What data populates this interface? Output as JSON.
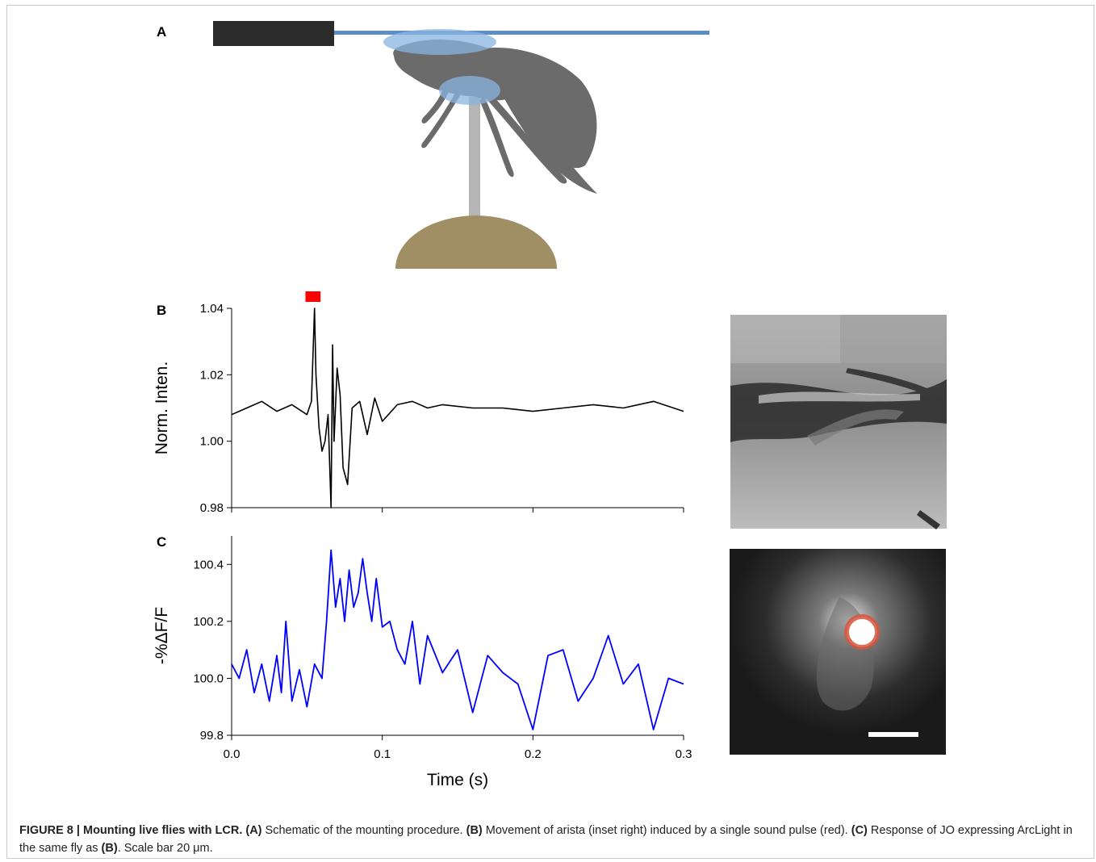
{
  "panels": {
    "a": "A",
    "b": "B",
    "c": "C"
  },
  "colors": {
    "mount_bar": "#2b2b2b",
    "beam": "#5b8ec4",
    "glue": "#8ab4e0",
    "fly": "#6b6b6b",
    "rod": "#b5b5b5",
    "base": "#a08e64",
    "pulse": "#ff0000",
    "trace_b": "#000000",
    "trace_c": "#0000ff",
    "roi_circle": "#d9533c"
  },
  "icons": {
    "fly": "fly-silhouette-icon"
  },
  "chart_data": [
    {
      "id": "B",
      "type": "line",
      "title": "",
      "xlabel": "",
      "ylabel": "Norm. Inten.",
      "xlim": [
        0.0,
        0.3
      ],
      "ylim": [
        0.98,
        1.04
      ],
      "yticks": [
        "0.98",
        "1.00",
        "1.02",
        "1.04"
      ],
      "grid": false,
      "stimulus": {
        "label": "",
        "x_start": 0.049,
        "x_end": 0.059,
        "color": "#ff0000"
      },
      "series": [
        {
          "x": [
            0.0,
            0.01,
            0.02,
            0.03,
            0.04,
            0.05,
            0.053,
            0.055,
            0.056,
            0.058,
            0.06,
            0.062,
            0.064,
            0.066,
            0.067,
            0.068,
            0.07,
            0.072,
            0.074,
            0.077,
            0.08,
            0.085,
            0.09,
            0.095,
            0.1,
            0.11,
            0.12,
            0.13,
            0.14,
            0.16,
            0.18,
            0.2,
            0.22,
            0.24,
            0.26,
            0.28,
            0.3
          ],
          "y": [
            1.008,
            1.01,
            1.012,
            1.009,
            1.011,
            1.008,
            1.012,
            1.04,
            1.02,
            1.004,
            0.997,
            1.0,
            1.008,
            0.98,
            1.029,
            1.0,
            1.022,
            1.014,
            0.992,
            0.987,
            1.01,
            1.012,
            1.002,
            1.013,
            1.006,
            1.011,
            1.012,
            1.01,
            1.011,
            1.01,
            1.01,
            1.009,
            1.01,
            1.011,
            1.01,
            1.012,
            1.009
          ]
        }
      ]
    },
    {
      "id": "C",
      "type": "line",
      "title": "",
      "xlabel": "Time (s)",
      "ylabel": "-%ΔF/F",
      "xlim": [
        0.0,
        0.3
      ],
      "ylim": [
        99.8,
        100.5
      ],
      "xticks": [
        "0.0",
        "0.1",
        "0.2",
        "0.3"
      ],
      "yticks": [
        "99.8",
        "100.0",
        "100.2",
        "100.4"
      ],
      "grid": false,
      "series": [
        {
          "x": [
            0.0,
            0.005,
            0.01,
            0.015,
            0.02,
            0.025,
            0.03,
            0.033,
            0.036,
            0.04,
            0.045,
            0.05,
            0.055,
            0.06,
            0.063,
            0.066,
            0.069,
            0.072,
            0.075,
            0.078,
            0.081,
            0.084,
            0.087,
            0.09,
            0.093,
            0.096,
            0.1,
            0.105,
            0.11,
            0.115,
            0.12,
            0.125,
            0.13,
            0.14,
            0.15,
            0.16,
            0.17,
            0.18,
            0.19,
            0.2,
            0.21,
            0.22,
            0.23,
            0.24,
            0.25,
            0.26,
            0.27,
            0.28,
            0.29,
            0.3
          ],
          "y": [
            100.05,
            100.0,
            100.1,
            99.95,
            100.05,
            99.92,
            100.08,
            99.95,
            100.2,
            99.92,
            100.03,
            99.9,
            100.05,
            100.0,
            100.2,
            100.45,
            100.25,
            100.35,
            100.2,
            100.38,
            100.25,
            100.3,
            100.42,
            100.3,
            100.2,
            100.35,
            100.18,
            100.2,
            100.1,
            100.05,
            100.2,
            99.98,
            100.15,
            100.02,
            100.1,
            99.88,
            100.08,
            100.02,
            99.98,
            99.82,
            100.08,
            100.1,
            99.92,
            100.0,
            100.15,
            99.98,
            100.05,
            99.82,
            100.0,
            99.98
          ]
        }
      ]
    }
  ],
  "caption": {
    "figure_label": "FIGURE 8 | Mounting live flies with LCR.",
    "a_ref": "(A)",
    "a_text": " Schematic of the mounting procedure. ",
    "b_ref": "(B)",
    "b_text": " Movement of arista (inset right) induced by a single sound pulse (red). ",
    "c_ref": "(C)",
    "c_text": " Response of JO expressing ArcLight in the same fly as ",
    "c_ref2": "(B)",
    "end_text": ". Scale bar 20 μm."
  }
}
